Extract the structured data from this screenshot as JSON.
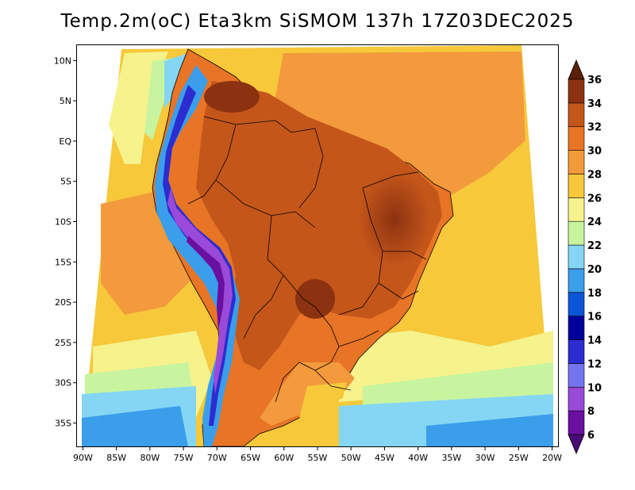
{
  "title": "Temp.2m(oC) Eta3km SiSMOM 137h 17Z03DEC2025",
  "map": {
    "variable": "2 m temperature",
    "units": "oC",
    "lon_range": [
      -91,
      -19
    ],
    "lat_range": [
      -38,
      12
    ],
    "lat_labels": [
      {
        "lat": 10,
        "label": "10N"
      },
      {
        "lat": 5,
        "label": "5N"
      },
      {
        "lat": 0,
        "label": "EQ"
      },
      {
        "lat": -5,
        "label": "5S"
      },
      {
        "lat": -10,
        "label": "10S"
      },
      {
        "lat": -15,
        "label": "15S"
      },
      {
        "lat": -20,
        "label": "20S"
      },
      {
        "lat": -25,
        "label": "25S"
      },
      {
        "lat": -30,
        "label": "30S"
      },
      {
        "lat": -35,
        "label": "35S"
      }
    ],
    "lon_labels": [
      {
        "lon": -90,
        "label": "90W"
      },
      {
        "lon": -85,
        "label": "85W"
      },
      {
        "lon": -80,
        "label": "80W"
      },
      {
        "lon": -75,
        "label": "75W"
      },
      {
        "lon": -70,
        "label": "70W"
      },
      {
        "lon": -65,
        "label": "65W"
      },
      {
        "lon": -60,
        "label": "60W"
      },
      {
        "lon": -55,
        "label": "55W"
      },
      {
        "lon": -50,
        "label": "50W"
      },
      {
        "lon": -45,
        "label": "45W"
      },
      {
        "lon": -40,
        "label": "40W"
      },
      {
        "lon": -35,
        "label": "35W"
      },
      {
        "lon": -30,
        "label": "30W"
      },
      {
        "lon": -25,
        "label": "25W"
      },
      {
        "lon": -20,
        "label": "20W"
      }
    ]
  },
  "colorbar": {
    "levels": [
      6,
      8,
      10,
      12,
      14,
      16,
      18,
      20,
      22,
      24,
      26,
      28,
      30,
      32,
      34,
      36
    ],
    "labels": [
      "6",
      "8",
      "10",
      "12",
      "14",
      "16",
      "18",
      "20",
      "22",
      "24",
      "26",
      "28",
      "30",
      "32",
      "34",
      "36"
    ],
    "colors": [
      "#6a0fa0",
      "#9a4ad8",
      "#7474ee",
      "#2c2cd0",
      "#00009a",
      "#0a55d8",
      "#3a9eea",
      "#84d6f4",
      "#c8f4a0",
      "#f6f28c",
      "#f6c83a",
      "#f29a3c",
      "#e87426",
      "#c4561a",
      "#8c3210"
    ],
    "under_color": "#4a0a78",
    "over_color": "#5a2008"
  }
}
